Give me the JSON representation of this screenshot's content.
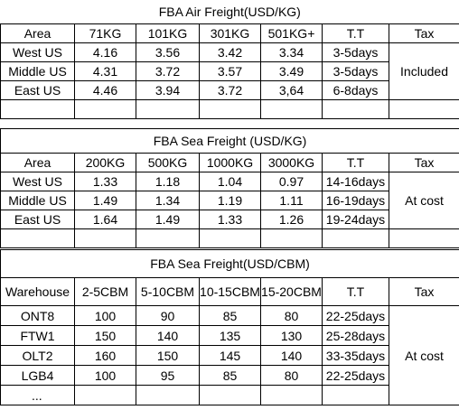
{
  "air": {
    "title": "FBA  Air Freight(USD/KG)",
    "headers": [
      "Area",
      "71KG",
      "101KG",
      "301KG",
      "501KG+",
      "T.T",
      "Tax"
    ],
    "rows": [
      {
        "area": "West US",
        "c1": "4.16",
        "c2": "3.56",
        "c3": "3.42",
        "c4": "3.34",
        "tt": "3-5days"
      },
      {
        "area": "Middle US",
        "c1": "4.31",
        "c2": "3.72",
        "c3": "3.57",
        "c4": "3.49",
        "tt": "3-5days"
      },
      {
        "area": "East US",
        "c1": "4.46",
        "c2": "3.94",
        "c3": "3.72",
        "c4": "3,64",
        "tt": "6-8days"
      }
    ],
    "tax": "Included"
  },
  "sea_kg": {
    "title": "FBA Sea Freight (USD/KG)",
    "headers": [
      "Area",
      "200KG",
      "500KG",
      "1000KG",
      "3000KG",
      "T.T",
      "Tax"
    ],
    "rows": [
      {
        "area": "West US",
        "c1": "1.33",
        "c2": "1.18",
        "c3": "1.04",
        "c4": "0.97",
        "tt": "14-16days"
      },
      {
        "area": "Middle US",
        "c1": "1.49",
        "c2": "1.34",
        "c3": "1.19",
        "c4": "1.11",
        "tt": "16-19days"
      },
      {
        "area": "East US",
        "c1": "1.64",
        "c2": "1.49",
        "c3": "1.33",
        "c4": "1.26",
        "tt": "19-24days"
      }
    ],
    "tax": "At cost"
  },
  "sea_cbm": {
    "title": "FBA Sea Freight(USD/CBM)",
    "headers": [
      "Warehouse",
      "2-5CBM",
      "5-10CBM",
      "10-15CBM",
      "15-20CBM",
      "T.T",
      "Tax"
    ],
    "rows": [
      {
        "area": "ONT8",
        "c1": "100",
        "c2": "90",
        "c3": "85",
        "c4": "80",
        "tt": "22-25days"
      },
      {
        "area": "FTW1",
        "c1": "150",
        "c2": "140",
        "c3": "135",
        "c4": "130",
        "tt": "25-28days"
      },
      {
        "area": "OLT2",
        "c1": "160",
        "c2": "150",
        "c3": "145",
        "c4": "140",
        "tt": "33-35days"
      },
      {
        "area": "LGB4",
        "c1": "100",
        "c2": "95",
        "c3": "85",
        "c4": "80",
        "tt": "22-25days"
      }
    ],
    "more": "...",
    "tax": "At cost"
  }
}
